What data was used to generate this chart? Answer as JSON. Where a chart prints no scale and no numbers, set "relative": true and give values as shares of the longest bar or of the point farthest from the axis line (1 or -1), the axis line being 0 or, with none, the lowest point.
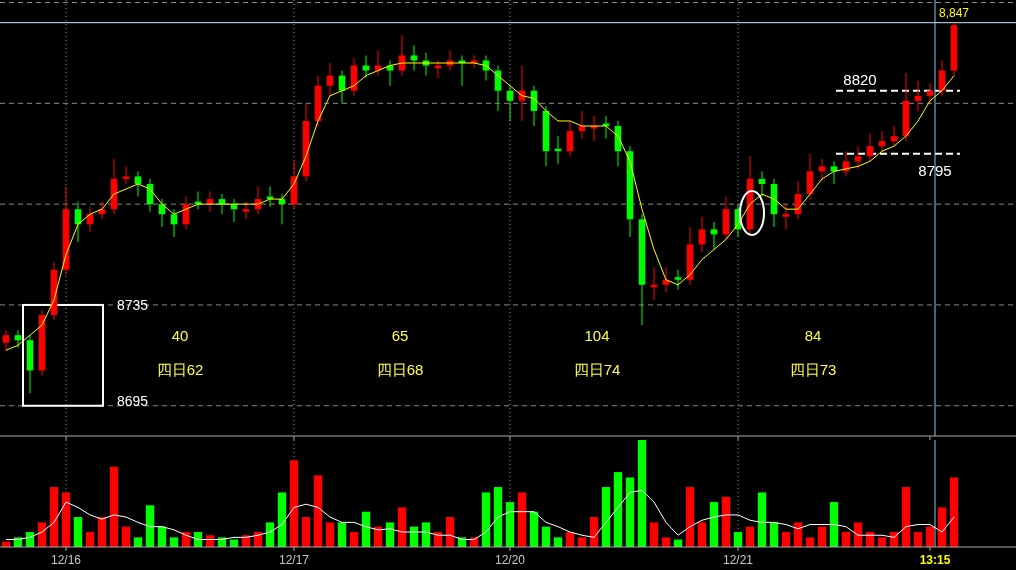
{
  "chart_data": [
    {
      "type": "candlestick",
      "categories": [
        null,
        null,
        null,
        null,
        null,
        "12/16",
        null,
        null,
        null,
        null,
        null,
        null,
        null,
        null,
        null,
        null,
        null,
        null,
        null,
        null,
        null,
        null,
        null,
        null,
        "12/17",
        null,
        null,
        null,
        null,
        null,
        null,
        null,
        null,
        null,
        null,
        null,
        null,
        null,
        null,
        null,
        null,
        null,
        "12/20",
        null,
        null,
        null,
        null,
        null,
        null,
        null,
        null,
        null,
        null,
        null,
        null,
        null,
        null,
        null,
        null,
        null,
        null,
        "12/21",
        null,
        null,
        null,
        null,
        null,
        null,
        null,
        null,
        null,
        null,
        null,
        null,
        null,
        null,
        null,
        "13:15",
        null,
        null
      ],
      "ohlc": [
        [
          8720,
          8725,
          8717,
          8723
        ],
        [
          8723,
          8725,
          8718,
          8721
        ],
        [
          8721,
          8723,
          8700,
          8709
        ],
        [
          8709,
          8733,
          8707,
          8731
        ],
        [
          8731,
          8752,
          8729,
          8749
        ],
        [
          8749,
          8782,
          8747,
          8773
        ],
        [
          8773,
          8776,
          8760,
          8767
        ],
        [
          8767,
          8774,
          8764,
          8771
        ],
        [
          8771,
          8776,
          8769,
          8773
        ],
        [
          8773,
          8793,
          8771,
          8785
        ],
        [
          8785,
          8790,
          8783,
          8786
        ],
        [
          8786,
          8788,
          8778,
          8783
        ],
        [
          8783,
          8785,
          8772,
          8775
        ],
        [
          8775,
          8777,
          8766,
          8771
        ],
        [
          8771,
          8773,
          8762,
          8767
        ],
        [
          8767,
          8778,
          8765,
          8775
        ],
        [
          8776,
          8780,
          8773,
          8775
        ],
        [
          8775,
          8780,
          8772,
          8777
        ],
        [
          8777,
          8779,
          8771,
          8775
        ],
        [
          8775,
          8777,
          8768,
          8773
        ],
        [
          8772,
          8776,
          8769,
          8773
        ],
        [
          8773,
          8782,
          8771,
          8777
        ],
        [
          8778,
          8782,
          8774,
          8777
        ],
        [
          8777,
          8779,
          8767,
          8775
        ],
        [
          8775,
          8792,
          8773,
          8786
        ],
        [
          8786,
          8815,
          8784,
          8808
        ],
        [
          8808,
          8826,
          8806,
          8822
        ],
        [
          8822,
          8831,
          8818,
          8826
        ],
        [
          8826,
          8828,
          8815,
          8820
        ],
        [
          8820,
          8833,
          8818,
          8830
        ],
        [
          8830,
          8834,
          8825,
          8828
        ],
        [
          8828,
          8836,
          8826,
          8830
        ],
        [
          8830,
          8832,
          8822,
          8828
        ],
        [
          8828,
          8842,
          8826,
          8834
        ],
        [
          8834,
          8838,
          8828,
          8832
        ],
        [
          8832,
          8835,
          8826,
          8830
        ],
        [
          8829,
          8832,
          8825,
          8830
        ],
        [
          8830,
          8836,
          8828,
          8832
        ],
        [
          8832,
          8834,
          8822,
          8831
        ],
        [
          8831,
          8834,
          8829,
          8832
        ],
        [
          8832,
          8834,
          8824,
          8828
        ],
        [
          8828,
          8830,
          8812,
          8820
        ],
        [
          8820,
          8822,
          8808,
          8816
        ],
        [
          8816,
          8830,
          8808,
          8820
        ],
        [
          8820,
          8822,
          8806,
          8812
        ],
        [
          8812,
          8814,
          8790,
          8796
        ],
        [
          8797,
          8802,
          8791,
          8796
        ],
        [
          8796,
          8808,
          8794,
          8804
        ],
        [
          8804,
          8812,
          8801,
          8806
        ],
        [
          8805,
          8810,
          8800,
          8806
        ],
        [
          8807,
          8810,
          8801,
          8806
        ],
        [
          8806,
          8808,
          8790,
          8796
        ],
        [
          8796,
          8798,
          8762,
          8769
        ],
        [
          8769,
          8771,
          8727,
          8743
        ],
        [
          8742,
          8750,
          8737,
          8743
        ],
        [
          8743,
          8750,
          8740,
          8745
        ],
        [
          8746,
          8749,
          8741,
          8745
        ],
        [
          8745,
          8766,
          8743,
          8759
        ],
        [
          8759,
          8770,
          8756,
          8765
        ],
        [
          8765,
          8768,
          8757,
          8763
        ],
        [
          8763,
          8778,
          8761,
          8773
        ],
        [
          8773,
          8775,
          8762,
          8765
        ],
        [
          8765,
          8794,
          8763,
          8785
        ],
        [
          8785,
          8788,
          8778,
          8783
        ],
        [
          8783,
          8785,
          8766,
          8771
        ],
        [
          8770,
          8775,
          8765,
          8771
        ],
        [
          8771,
          8784,
          8769,
          8779
        ],
        [
          8779,
          8795,
          8777,
          8788
        ],
        [
          8788,
          8793,
          8784,
          8790
        ],
        [
          8790,
          8792,
          8783,
          8788
        ],
        [
          8788,
          8796,
          8786,
          8792
        ],
        [
          8792,
          8798,
          8789,
          8794
        ],
        [
          8794,
          8803,
          8792,
          8798
        ],
        [
          8798,
          8804,
          8796,
          8800
        ],
        [
          8800,
          8806,
          8798,
          8802
        ],
        [
          8802,
          8827,
          8800,
          8816
        ],
        [
          8816,
          8824,
          8812,
          8818
        ],
        [
          8818,
          8823,
          8815,
          8820
        ],
        [
          8820,
          8832,
          8818,
          8828
        ],
        [
          8828,
          8847,
          8826,
          8846
        ]
      ],
      "colors": [
        "#ff0000",
        "#00ff00",
        "#00ff00",
        "#ff0000",
        "#ff0000",
        "#ff0000",
        "#00ff00",
        "#ff0000",
        "#ff0000",
        "#ff0000",
        "#ff0000",
        "#00ff00",
        "#00ff00",
        "#00ff00",
        "#00ff00",
        "#ff0000",
        "#00ff00",
        "#ff0000",
        "#00ff00",
        "#00ff00",
        "#ff0000",
        "#ff0000",
        "#00ff00",
        "#00ff00",
        "#ff0000",
        "#ff0000",
        "#ff0000",
        "#ff0000",
        "#00ff00",
        "#ff0000",
        "#00ff00",
        "#ff0000",
        "#00ff00",
        "#ff0000",
        "#00ff00",
        "#00ff00",
        "#ff0000",
        "#ff0000",
        "#00ff00",
        "#ff0000",
        "#00ff00",
        "#00ff00",
        "#00ff00",
        "#ff0000",
        "#00ff00",
        "#00ff00",
        "#00ff00",
        "#ff0000",
        "#ff0000",
        "#ff0000",
        "#00ff00",
        "#00ff00",
        "#00ff00",
        "#00ff00",
        "#ff0000",
        "#ff0000",
        "#00ff00",
        "#ff0000",
        "#ff0000",
        "#00ff00",
        "#ff0000",
        "#00ff00",
        "#ff0000",
        "#00ff00",
        "#00ff00",
        "#ff0000",
        "#ff0000",
        "#ff0000",
        "#ff0000",
        "#00ff00",
        "#ff0000",
        "#ff0000",
        "#ff0000",
        "#ff0000",
        "#ff0000",
        "#ff0000",
        "#ff0000",
        "#ff0000",
        "#ff0000",
        "#ff0000"
      ],
      "series": [
        {
          "type": "line",
          "color": "#ffff00",
          "values": [
            8717,
            8719,
            8723,
            8727,
            8737,
            8755,
            8767,
            8771,
            8773,
            8779,
            8781,
            8783,
            8781,
            8775,
            8771,
            8773,
            8775,
            8775,
            8775,
            8775,
            8775,
            8775,
            8777,
            8777,
            8783,
            8794,
            8808,
            8818,
            8820,
            8822,
            8826,
            8828,
            8830,
            8831,
            8831,
            8831,
            8831,
            8831,
            8831,
            8831,
            8830,
            8826,
            8822,
            8818,
            8817,
            8812,
            8808,
            8808,
            8806,
            8806,
            8806,
            8802,
            8792,
            8773,
            8757,
            8745,
            8743,
            8747,
            8753,
            8757,
            8761,
            8767,
            8775,
            8779,
            8777,
            8773,
            8773,
            8779,
            8785,
            8788,
            8789,
            8790,
            8792,
            8796,
            8798,
            8802,
            8808,
            8816,
            8820,
            8826
          ]
        }
      ],
      "ylim": [
        8683,
        8856
      ],
      "yticks": [
        {
          "value": 8695,
          "label": null
        },
        {
          "value": 8735,
          "label": null
        },
        {
          "value": 8775,
          "label": null
        },
        {
          "value": 8815,
          "label": null
        },
        {
          "value": 8855,
          "label": null
        }
      ],
      "grid": true,
      "tick_labels": false,
      "ref_lines": [
        {
          "axis": "y",
          "value": 8847,
          "label": "8,847",
          "color": "#c8e6ff"
        },
        {
          "axis": "y",
          "value": 8820,
          "label": "8820",
          "color": "#ffffff",
          "line_style": "dashed"
        },
        {
          "axis": "y",
          "value": 8795,
          "label": "8795",
          "color": "#ffffff",
          "line_style": "dashed"
        },
        {
          "axis": "x",
          "value": "13:15",
          "color": "#8cc8f0"
        }
      ],
      "annotations": [
        "8735",
        "8695",
        "40",
        "四日62",
        "65",
        "四日68",
        "104",
        "四日74",
        "84",
        "四日73"
      ]
    },
    {
      "type": "bar",
      "relative": true,
      "categories": [
        null,
        null,
        null,
        null,
        null,
        "12/16",
        null,
        null,
        null,
        null,
        null,
        null,
        null,
        null,
        null,
        null,
        null,
        null,
        null,
        null,
        null,
        null,
        null,
        null,
        "12/17",
        null,
        null,
        null,
        null,
        null,
        null,
        null,
        null,
        null,
        null,
        null,
        null,
        null,
        null,
        null,
        null,
        null,
        "12/20",
        null,
        null,
        null,
        null,
        null,
        null,
        null,
        null,
        null,
        null,
        null,
        null,
        null,
        null,
        null,
        null,
        null,
        null,
        "12/21",
        null,
        null,
        null,
        null,
        null,
        null,
        null,
        null,
        null,
        null,
        null,
        null,
        null,
        null,
        null,
        "13:15",
        null,
        null
      ],
      "values": [
        0.05,
        0.09,
        0.14,
        0.23,
        0.56,
        0.51,
        0.28,
        0.14,
        0.28,
        0.75,
        0.19,
        0.09,
        0.39,
        0.19,
        0.09,
        0.14,
        0.14,
        0.11,
        0.09,
        0.07,
        0.11,
        0.14,
        0.23,
        0.51,
        0.81,
        0.28,
        0.67,
        0.23,
        0.23,
        0.14,
        0.33,
        0.19,
        0.23,
        0.37,
        0.19,
        0.23,
        0.14,
        0.28,
        0.09,
        0.09,
        0.51,
        0.56,
        0.42,
        0.51,
        0.33,
        0.19,
        0.09,
        0.14,
        0.09,
        0.28,
        0.56,
        0.7,
        0.65,
        1,
        0.23,
        0.09,
        0.07,
        0.56,
        0.23,
        0.42,
        0.47,
        0.14,
        0.19,
        0.51,
        0.23,
        0.14,
        0.23,
        0.09,
        0.19,
        0.42,
        0.14,
        0.23,
        0.14,
        0.09,
        0.14,
        0.56,
        0.14,
        0.19,
        0.37,
        0.65
      ],
      "colors": [
        "#ff0000",
        "#00ff00",
        "#00ff00",
        "#ff0000",
        "#ff0000",
        "#ff0000",
        "#00ff00",
        "#ff0000",
        "#ff0000",
        "#ff0000",
        "#ff0000",
        "#00ff00",
        "#00ff00",
        "#00ff00",
        "#00ff00",
        "#ff0000",
        "#00ff00",
        "#ff0000",
        "#00ff00",
        "#00ff00",
        "#ff0000",
        "#ff0000",
        "#00ff00",
        "#00ff00",
        "#ff0000",
        "#ff0000",
        "#ff0000",
        "#ff0000",
        "#00ff00",
        "#ff0000",
        "#00ff00",
        "#ff0000",
        "#00ff00",
        "#ff0000",
        "#00ff00",
        "#00ff00",
        "#ff0000",
        "#ff0000",
        "#00ff00",
        "#ff0000",
        "#00ff00",
        "#00ff00",
        "#00ff00",
        "#ff0000",
        "#00ff00",
        "#00ff00",
        "#00ff00",
        "#ff0000",
        "#ff0000",
        "#ff0000",
        "#00ff00",
        "#00ff00",
        "#00ff00",
        "#00ff00",
        "#ff0000",
        "#ff0000",
        "#00ff00",
        "#ff0000",
        "#ff0000",
        "#00ff00",
        "#ff0000",
        "#00ff00",
        "#ff0000",
        "#00ff00",
        "#00ff00",
        "#ff0000",
        "#ff0000",
        "#ff0000",
        "#ff0000",
        "#00ff00",
        "#ff0000",
        "#ff0000",
        "#ff0000",
        "#ff0000",
        "#ff0000",
        "#ff0000",
        "#ff0000",
        "#ff0000",
        "#ff0000",
        "#ff0000"
      ],
      "series": [
        {
          "type": "line",
          "color": "#ffffff",
          "values": [
            0.07,
            0.07,
            0.09,
            0.14,
            0.23,
            0.42,
            0.37,
            0.3,
            0.26,
            0.3,
            0.28,
            0.23,
            0.19,
            0.19,
            0.16,
            0.11,
            0.07,
            0.07,
            0.07,
            0.09,
            0.09,
            0.11,
            0.14,
            0.21,
            0.37,
            0.4,
            0.37,
            0.28,
            0.23,
            0.23,
            0.19,
            0.16,
            0.17,
            0.14,
            0.14,
            0.14,
            0.11,
            0.11,
            0.07,
            0.07,
            0.14,
            0.28,
            0.33,
            0.33,
            0.33,
            0.23,
            0.19,
            0.14,
            0.11,
            0.09,
            0.23,
            0.37,
            0.51,
            0.53,
            0.42,
            0.23,
            0.11,
            0.19,
            0.25,
            0.28,
            0.3,
            0.3,
            0.25,
            0.23,
            0.23,
            0.21,
            0.17,
            0.21,
            0.21,
            0.21,
            0.19,
            0.11,
            0.11,
            0.11,
            0.09,
            0.19,
            0.21,
            0.21,
            0.14,
            0.28
          ]
        }
      ],
      "grid": "x",
      "tick_labels": "x",
      "ref_lines": [
        {
          "axis": "x",
          "value": "13:15",
          "color": "#8cc8f0"
        }
      ]
    }
  ]
}
